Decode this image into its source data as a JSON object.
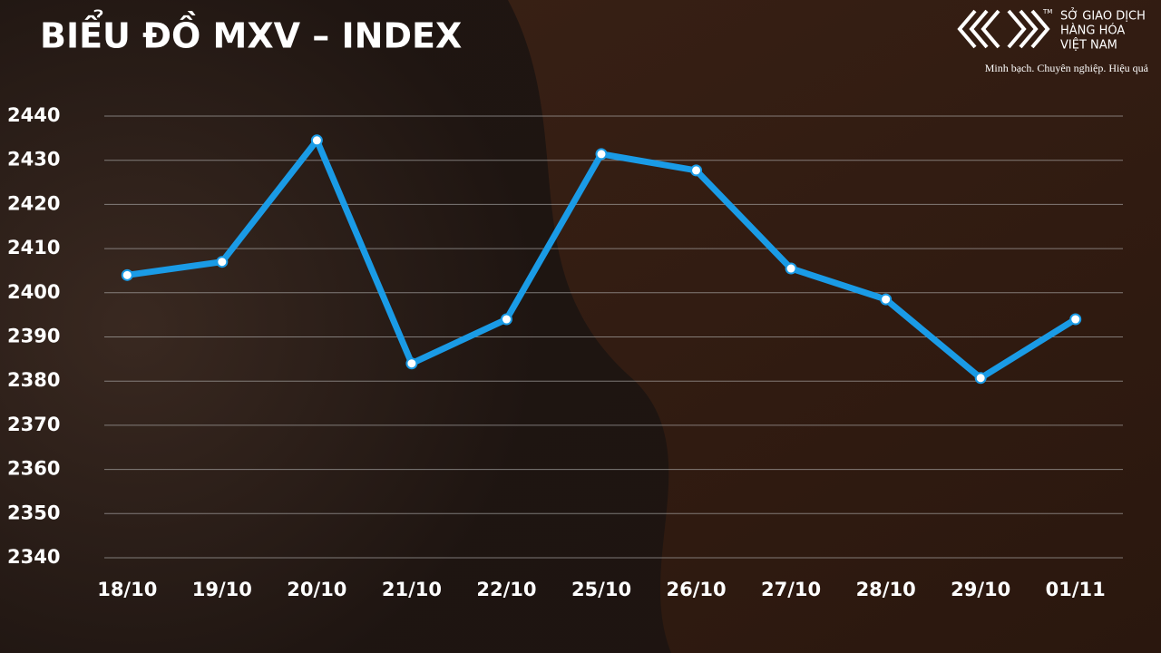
{
  "brand": {
    "name_lines": [
      "SỞ GIAO DỊCH",
      "HÀNG HÓA",
      "VIỆT NAM"
    ],
    "trademark": "TM",
    "slogan": "Minh bạch. Chuyên nghiệp. Hiệu quả"
  },
  "chart_data": {
    "type": "line",
    "title": "BIỂU ĐỒ MXV – INDEX",
    "categories": [
      "18/10",
      "19/10",
      "20/10",
      "21/10",
      "22/10",
      "25/10",
      "26/10",
      "27/10",
      "28/10",
      "29/10",
      "01/11"
    ],
    "series": [
      {
        "name": "MXV-Index",
        "color": "#1a9be6",
        "values": [
          2404,
          2407,
          2434.5,
          2384,
          2394,
          2431.4,
          2427.7,
          2405.5,
          2398.5,
          2380.7,
          2394
        ]
      }
    ],
    "ylim": [
      2340,
      2440
    ],
    "yticks": [
      2340,
      2350,
      2360,
      2370,
      2380,
      2390,
      2400,
      2410,
      2420,
      2430,
      2440
    ],
    "grid": true,
    "legend": false
  }
}
